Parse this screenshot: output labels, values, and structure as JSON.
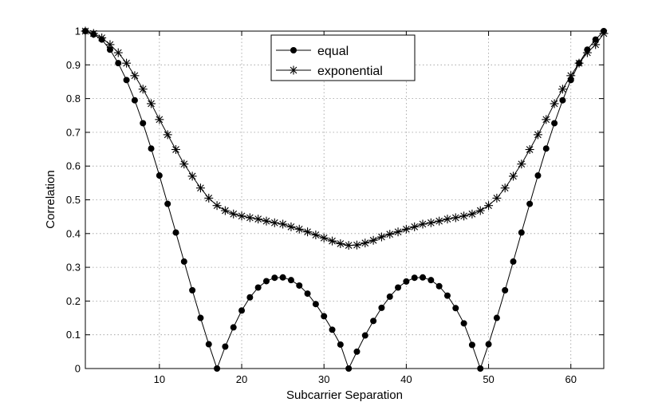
{
  "chart_data": {
    "type": "line",
    "xlabel": "Subcarrier Separation",
    "ylabel": "Correlation",
    "xlim": [
      1,
      64
    ],
    "ylim": [
      0,
      1
    ],
    "xticks": [
      10,
      20,
      30,
      40,
      50,
      60
    ],
    "yticks": [
      0,
      0.1,
      0.2,
      0.3,
      0.4,
      0.5,
      0.6,
      0.7,
      0.8,
      0.9,
      1
    ],
    "grid": true,
    "legend_position": "top-center",
    "x": [
      1,
      2,
      3,
      4,
      5,
      6,
      7,
      8,
      9,
      10,
      11,
      12,
      13,
      14,
      15,
      16,
      17,
      18,
      19,
      20,
      21,
      22,
      23,
      24,
      25,
      26,
      27,
      28,
      29,
      30,
      31,
      32,
      33,
      34,
      35,
      36,
      37,
      38,
      39,
      40,
      41,
      42,
      43,
      44,
      45,
      46,
      47,
      48,
      49,
      50,
      51,
      52,
      53,
      54,
      55,
      56,
      57,
      58,
      59,
      60,
      61,
      62,
      63,
      64
    ],
    "series": [
      {
        "name": "equal",
        "marker": "circle",
        "color": "#000000",
        "values": [
          1.0,
          0.99,
          0.975,
          0.945,
          0.905,
          0.855,
          0.795,
          0.727,
          0.652,
          0.572,
          0.488,
          0.403,
          0.317,
          0.232,
          0.15,
          0.072,
          0.0,
          0.065,
          0.122,
          0.172,
          0.211,
          0.24,
          0.259,
          0.269,
          0.27,
          0.262,
          0.246,
          0.222,
          0.191,
          0.155,
          0.115,
          0.071,
          0.0,
          0.05,
          0.098,
          0.141,
          0.18,
          0.213,
          0.24,
          0.258,
          0.269,
          0.27,
          0.262,
          0.244,
          0.216,
          0.179,
          0.134,
          0.07,
          0.0,
          0.072,
          0.15,
          0.232,
          0.317,
          0.403,
          0.488,
          0.572,
          0.652,
          0.727,
          0.795,
          0.855,
          0.905,
          0.945,
          0.975,
          1.0
        ]
      },
      {
        "name": "exponential",
        "marker": "asterisk",
        "color": "#000000",
        "values": [
          1.0,
          0.993,
          0.98,
          0.96,
          0.936,
          0.905,
          0.868,
          0.828,
          0.785,
          0.738,
          0.693,
          0.649,
          0.606,
          0.57,
          0.535,
          0.505,
          0.483,
          0.468,
          0.458,
          0.452,
          0.447,
          0.443,
          0.437,
          0.432,
          0.428,
          0.42,
          0.413,
          0.405,
          0.396,
          0.387,
          0.378,
          0.37,
          0.365,
          0.366,
          0.372,
          0.38,
          0.39,
          0.398,
          0.405,
          0.413,
          0.42,
          0.428,
          0.432,
          0.437,
          0.443,
          0.447,
          0.452,
          0.458,
          0.468,
          0.483,
          0.505,
          0.535,
          0.57,
          0.606,
          0.649,
          0.693,
          0.738,
          0.785,
          0.828,
          0.868,
          0.905,
          0.936,
          0.96,
          0.993
        ]
      }
    ]
  }
}
